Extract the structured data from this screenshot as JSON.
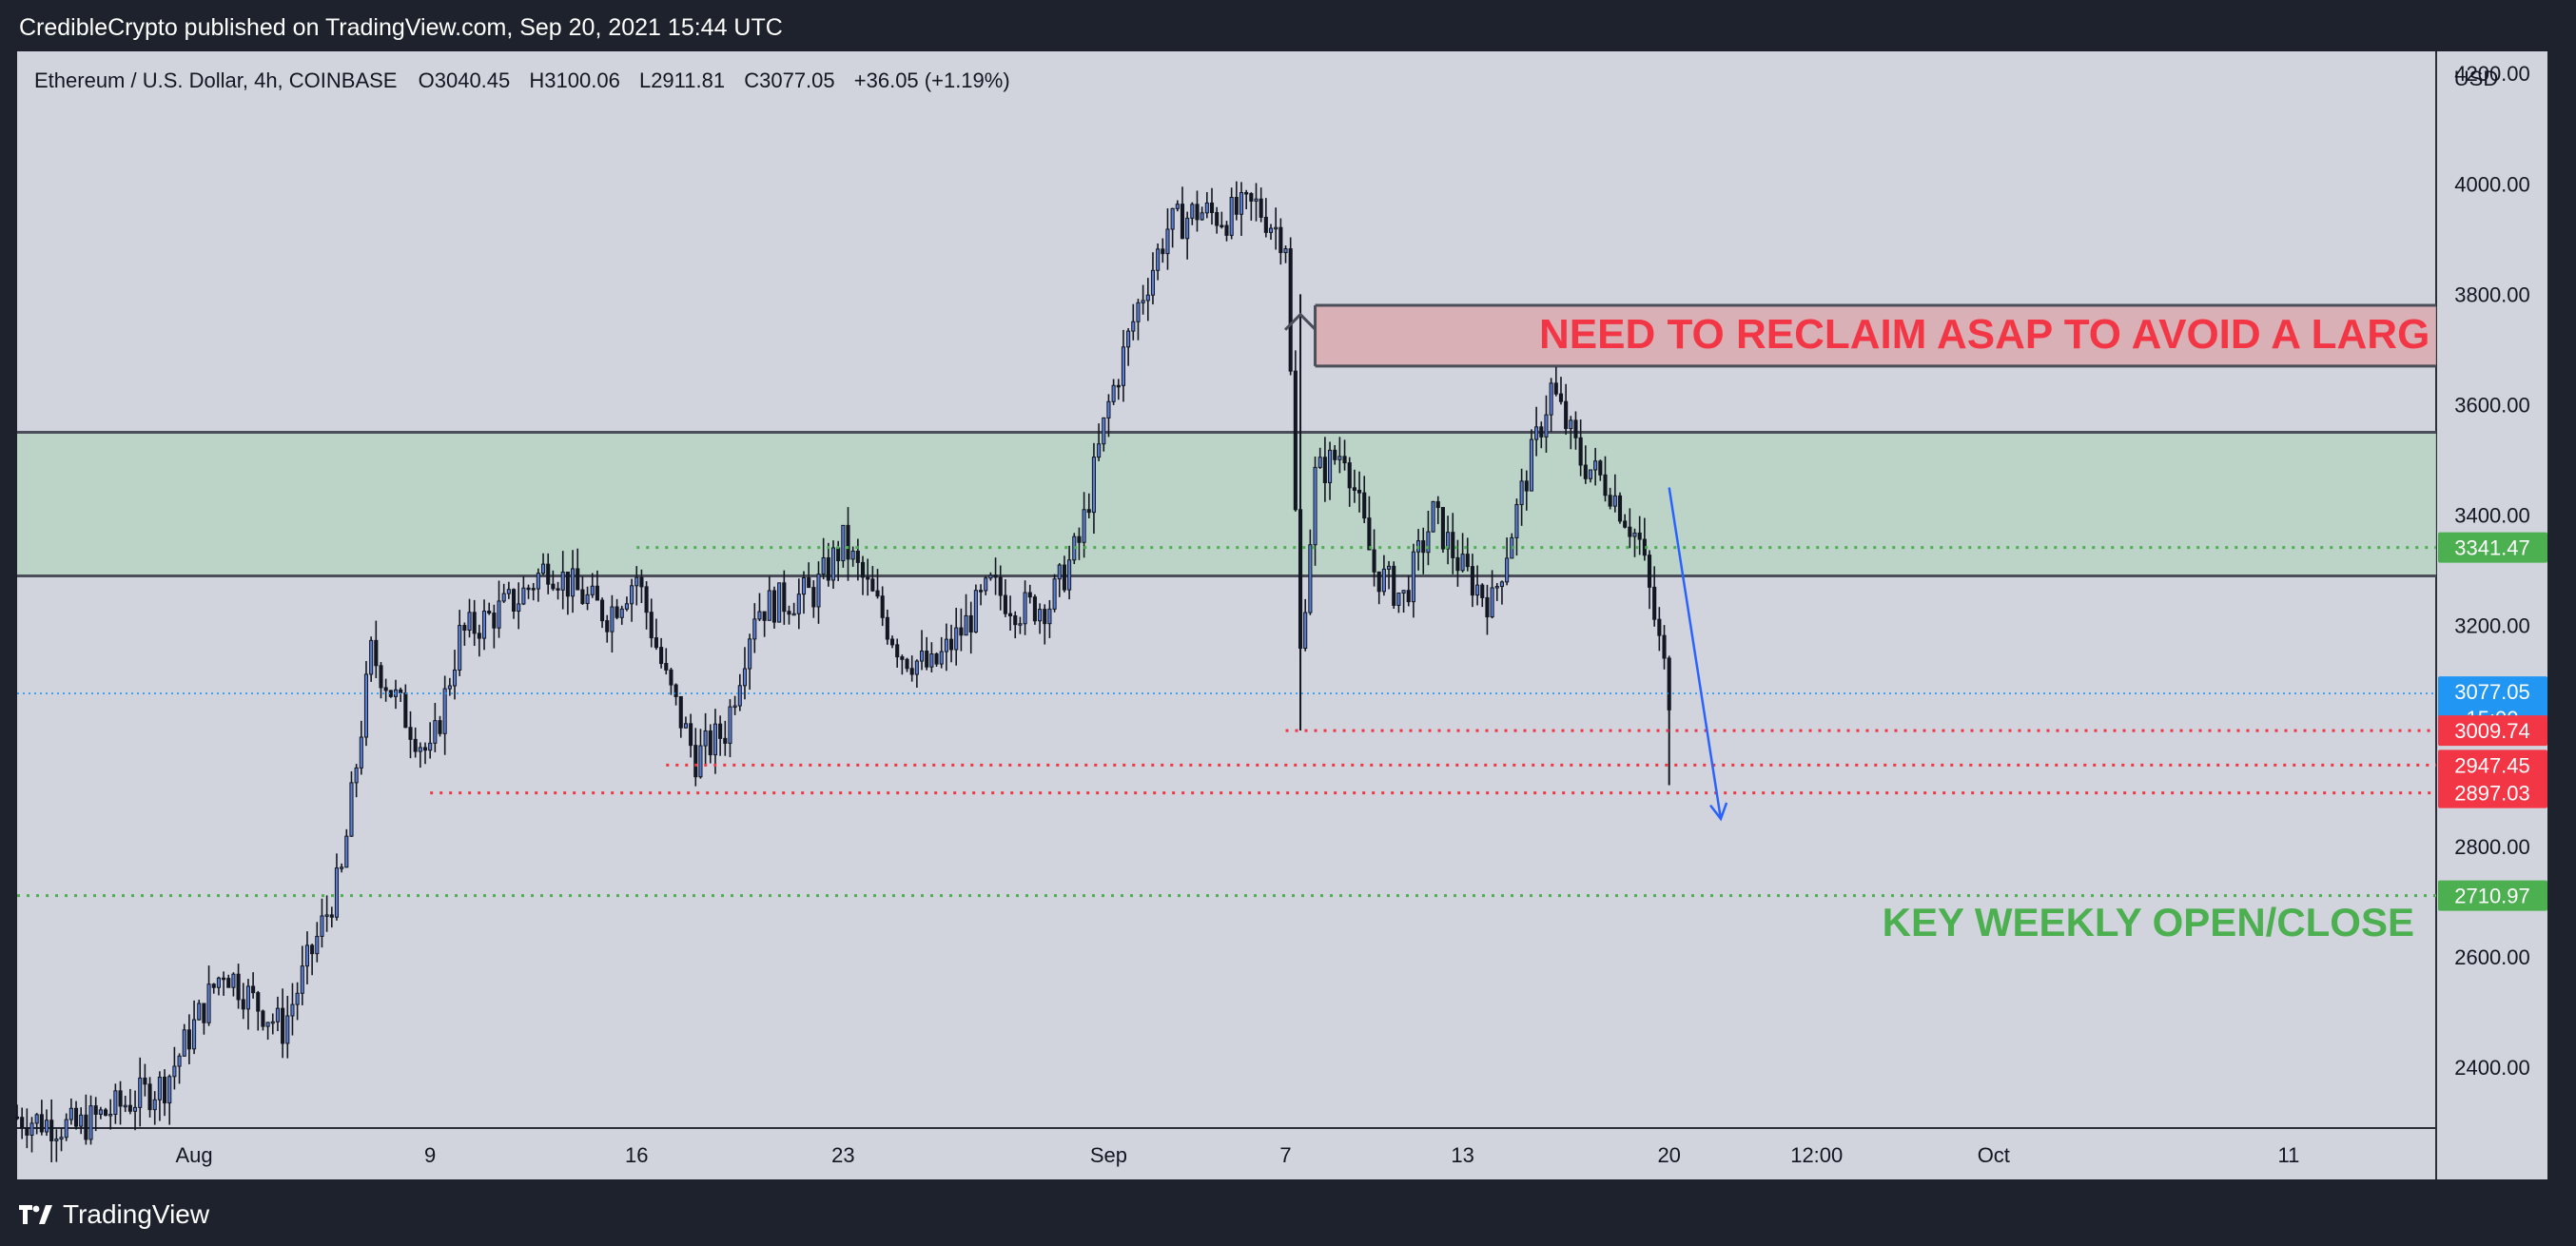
{
  "header": {
    "publisher_line": "CredibleCrypto published on TradingView.com, Sep 20, 2021 15:44 UTC"
  },
  "footer": {
    "brand": "TradingView"
  },
  "legend": {
    "symbol": "Ethereum / U.S. Dollar, 4h, COINBASE",
    "open_label": "O",
    "open": "3040.45",
    "high_label": "H",
    "high": "3100.06",
    "low_label": "L",
    "low": "2911.81",
    "close_label": "C",
    "close": "3077.05",
    "change": "+36.05 (+1.19%)"
  },
  "annotations": {
    "resistance_text": "NEED TO RECLAIM ASAP TO AVOID A LARG",
    "support_text": "KEY WEEKLY OPEN/CLOSE"
  },
  "chart_data": {
    "type": "candlestick",
    "title": "Ethereum / U.S. Dollar, 4h, COINBASE",
    "y_unit": "USD",
    "ylim": [
      2290,
      4240
    ],
    "y_ticks": [
      "4200.00",
      "4000.00",
      "3800.00",
      "3600.00",
      "3400.00",
      "3200.00",
      "2800.00",
      "2600.00",
      "2400.00"
    ],
    "x_ticks": [
      {
        "label": "Aug",
        "date": "2021-08-01"
      },
      {
        "label": "9",
        "date": "2021-08-09"
      },
      {
        "label": "16",
        "date": "2021-08-16"
      },
      {
        "label": "23",
        "date": "2021-08-23"
      },
      {
        "label": "Sep",
        "date": "2021-09-01"
      },
      {
        "label": "7",
        "date": "2021-09-07"
      },
      {
        "label": "13",
        "date": "2021-09-13"
      },
      {
        "label": "20",
        "date": "2021-09-20"
      },
      {
        "label": "12:00",
        "date": "2021-09-25"
      },
      {
        "label": "Oct",
        "date": "2021-10-01"
      },
      {
        "label": "11",
        "date": "2021-10-11"
      }
    ],
    "xlim": [
      "2021-07-26",
      "2021-10-16"
    ],
    "price_path": [
      [
        "2021-07-26",
        2310
      ],
      [
        "2021-07-28",
        2290
      ],
      [
        "2021-07-31",
        2370
      ],
      [
        "2021-08-02",
        2580
      ],
      [
        "2021-08-03",
        2520
      ],
      [
        "2021-08-04",
        2470
      ],
      [
        "2021-08-06",
        2750
      ],
      [
        "2021-08-07",
        3150
      ],
      [
        "2021-08-08",
        3050
      ],
      [
        "2021-08-09",
        2960
      ],
      [
        "2021-08-10",
        3180
      ],
      [
        "2021-08-12",
        3250
      ],
      [
        "2021-08-13",
        3310
      ],
      [
        "2021-08-14",
        3260
      ],
      [
        "2021-08-15",
        3220
      ],
      [
        "2021-08-16",
        3290
      ],
      [
        "2021-08-17",
        3100
      ],
      [
        "2021-08-18",
        2960
      ],
      [
        "2021-08-19",
        3010
      ],
      [
        "2021-08-20",
        3230
      ],
      [
        "2021-08-22",
        3260
      ],
      [
        "2021-08-23",
        3350
      ],
      [
        "2021-08-24",
        3250
      ],
      [
        "2021-08-25",
        3150
      ],
      [
        "2021-08-26",
        3120
      ],
      [
        "2021-08-27",
        3190
      ],
      [
        "2021-08-28",
        3270
      ],
      [
        "2021-08-29",
        3230
      ],
      [
        "2021-08-30",
        3240
      ],
      [
        "2021-08-31",
        3350
      ],
      [
        "2021-09-01",
        3600
      ],
      [
        "2021-09-02",
        3780
      ],
      [
        "2021-09-03",
        3920
      ],
      [
        "2021-09-04",
        3950
      ],
      [
        "2021-09-05",
        3940
      ],
      [
        "2021-09-06",
        3960
      ],
      [
        "2021-09-07",
        3900
      ],
      [
        "2021-09-07T12:00",
        3150
      ],
      [
        "2021-09-08",
        3470
      ],
      [
        "2021-09-09",
        3520
      ],
      [
        "2021-09-10",
        3300
      ],
      [
        "2021-09-11",
        3250
      ],
      [
        "2021-09-12",
        3400
      ],
      [
        "2021-09-13",
        3300
      ],
      [
        "2021-09-14",
        3240
      ],
      [
        "2021-09-15",
        3440
      ],
      [
        "2021-09-16",
        3630
      ],
      [
        "2021-09-17",
        3500
      ],
      [
        "2021-09-18",
        3450
      ],
      [
        "2021-09-19",
        3350
      ],
      [
        "2021-09-20",
        3077
      ]
    ],
    "zones": [
      {
        "name": "resistance",
        "from": 3670,
        "to": 3780,
        "color": "#d9a9ae"
      },
      {
        "name": "support",
        "from": 3290,
        "to": 3550,
        "color": "#b8d4c4"
      }
    ],
    "levels": [
      {
        "value": 3341.47,
        "label": "3341.47",
        "color": "#4caf50",
        "style": "dotted"
      },
      {
        "value": 3077.05,
        "label": "3077.05",
        "sublabel": "15:00",
        "color": "#2196f3",
        "style": "dotted"
      },
      {
        "value": 3009.74,
        "label": "3009.74",
        "color": "#f23645",
        "style": "dotted"
      },
      {
        "value": 2947.45,
        "label": "2947.45",
        "color": "#f23645",
        "style": "dotted"
      },
      {
        "value": 2897.03,
        "label": "2897.03",
        "color": "#f23645",
        "style": "dotted"
      },
      {
        "value": 2710.97,
        "label": "2710.97",
        "color": "#4caf50",
        "style": "dotted"
      }
    ],
    "projection_arrow": {
      "from": [
        "2021-09-20",
        3450
      ],
      "to": [
        "2021-09-21T18:00",
        2850
      ],
      "color": "#2962ff"
    },
    "colors": {
      "background": "#d1d4dc",
      "candle": "#131722",
      "grid": "#c4c7cf",
      "resistance_text": "#f23645",
      "support_text": "#4caf50"
    }
  }
}
